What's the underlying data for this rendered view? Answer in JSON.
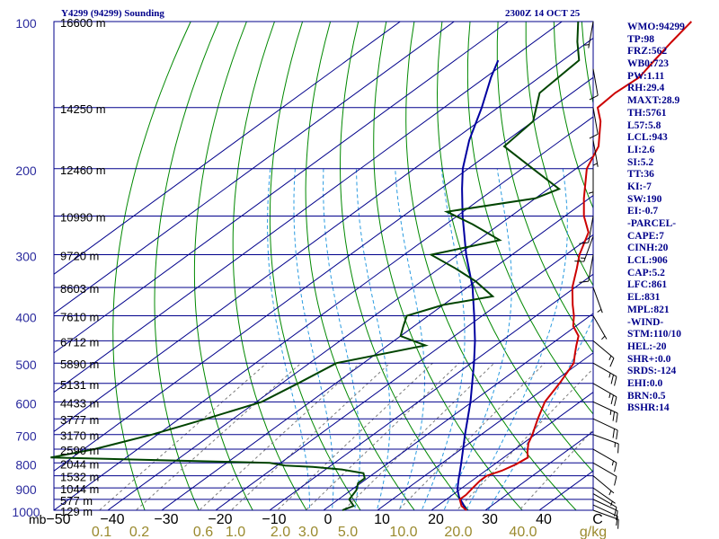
{
  "header": {
    "station": "Y4299 (94299) Sounding",
    "time": "2300Z 14 OCT 25"
  },
  "colors": {
    "isobar": "#00008b",
    "isotherm": "#00008b",
    "dry_adiabat": "#008800",
    "moist_adiabat": "#2a9be0",
    "mixing_ratio": "#7a7a7a",
    "temperature": "#cc0000",
    "dewpoint": "#004400",
    "parcel": "#0000a0",
    "wind": "#000000",
    "pressure_labels": "#2b2b9e",
    "height_labels": "#000000",
    "temp_labels": "#000000",
    "mixing_labels": "#9a8a2e"
  },
  "chart_data": {
    "type": "skew-t log-p",
    "pressure_axis": {
      "unit": "mb",
      "range": [
        1000,
        100
      ],
      "scale": "log",
      "ticks": [
        "100",
        "200",
        "300",
        "400",
        "500",
        "600",
        "700",
        "800",
        "900",
        "1000"
      ]
    },
    "temperature_axis": {
      "unit": "C",
      "range": [
        -50,
        50
      ],
      "ticks": [
        "−50",
        "−40",
        "−30",
        "−20",
        "−10",
        "0",
        "10",
        "20",
        "30",
        "40",
        "C"
      ]
    },
    "mixing_ratio_axis": {
      "unit": "g/kg",
      "ticks": [
        "0.1",
        "0.2",
        "0.6",
        "1.0",
        "2.0",
        "3.0",
        "5.0",
        "10.0",
        "20.0",
        "40.0",
        "g/kg"
      ]
    },
    "height_labels": [
      {
        "p": 100,
        "text": "16600 m"
      },
      {
        "p": 150,
        "text": "14250 m"
      },
      {
        "p": 200,
        "text": "12460 m"
      },
      {
        "p": 250,
        "text": "10990 m"
      },
      {
        "p": 300,
        "text": "9720 m"
      },
      {
        "p": 350,
        "text": "8603 m"
      },
      {
        "p": 400,
        "text": "7610 m"
      },
      {
        "p": 450,
        "text": "6712 m"
      },
      {
        "p": 500,
        "text": "5890 m"
      },
      {
        "p": 550,
        "text": "5131 m"
      },
      {
        "p": 600,
        "text": "4433 m"
      },
      {
        "p": 650,
        "text": "3777 m"
      },
      {
        "p": 700,
        "text": "3170 m"
      },
      {
        "p": 750,
        "text": "2590 m"
      },
      {
        "p": 800,
        "text": "2044 m"
      },
      {
        "p": 850,
        "text": "1532 m"
      },
      {
        "p": 900,
        "text": "1044 m"
      },
      {
        "p": 950,
        "text": "577 m"
      },
      {
        "p": 1000,
        "text": "129 m"
      }
    ],
    "temperature_profile": [
      [
        1000,
        26.5
      ],
      [
        980,
        24.5
      ],
      [
        950,
        22.5
      ],
      [
        930,
        22.5
      ],
      [
        900,
        22.0
      ],
      [
        870,
        21.5
      ],
      [
        850,
        21.5
      ],
      [
        830,
        23.0
      ],
      [
        805,
        24.0
      ],
      [
        780,
        24.5
      ],
      [
        760,
        23.0
      ],
      [
        730,
        21.0
      ],
      [
        700,
        19.5
      ],
      [
        650,
        16.5
      ],
      [
        600,
        13.5
      ],
      [
        550,
        11.5
      ],
      [
        500,
        9.0
      ],
      [
        480,
        7.0
      ],
      [
        460,
        5.0
      ],
      [
        440,
        3.0
      ],
      [
        420,
        -0.5
      ],
      [
        400,
        -3.0
      ],
      [
        380,
        -6.0
      ],
      [
        350,
        -10.5
      ],
      [
        320,
        -14.5
      ],
      [
        300,
        -17.5
      ],
      [
        270,
        -21.5
      ],
      [
        250,
        -26.5
      ],
      [
        230,
        -31.0
      ],
      [
        200,
        -38.0
      ],
      [
        180,
        -41.5
      ],
      [
        160,
        -47.5
      ],
      [
        150,
        -51.5
      ],
      [
        140,
        -52.0
      ],
      [
        130,
        -51.5
      ],
      [
        120,
        -53.0
      ],
      [
        110,
        -54.5
      ],
      [
        100,
        -56.0
      ]
    ],
    "dewpoint_profile": [
      [
        1000,
        3.5
      ],
      [
        980,
        4.5
      ],
      [
        950,
        2.0
      ],
      [
        910,
        1.0
      ],
      [
        880,
        -0.5
      ],
      [
        860,
        -0.5
      ],
      [
        840,
        -2.0
      ],
      [
        825,
        -7.0
      ],
      [
        815,
        -13.0
      ],
      [
        810,
        -18.5
      ],
      [
        800,
        -22.0
      ],
      [
        780,
        -64.0
      ],
      [
        750,
        -58.0
      ],
      [
        700,
        -51.0
      ],
      [
        650,
        -45.0
      ],
      [
        600,
        -39.0
      ],
      [
        550,
        -37.0
      ],
      [
        500,
        -35.0
      ],
      [
        460,
        -23.0
      ],
      [
        440,
        -30.0
      ],
      [
        420,
        -32.0
      ],
      [
        400,
        -34.0
      ],
      [
        380,
        -30.0
      ],
      [
        365,
        -23.0
      ],
      [
        340,
        -30.0
      ],
      [
        320,
        -37.0
      ],
      [
        300,
        -45.0
      ],
      [
        280,
        -36.0
      ],
      [
        260,
        -45.0
      ],
      [
        245,
        -53.0
      ],
      [
        230,
        -40.0
      ],
      [
        220,
        -38.0
      ],
      [
        200,
        -48.0
      ],
      [
        180,
        -59.0
      ],
      [
        160,
        -60.0
      ],
      [
        140,
        -66.0
      ],
      [
        120,
        -67.0
      ],
      [
        110,
        -72.0
      ],
      [
        100,
        -77.0
      ]
    ],
    "parcel_profile": [
      [
        1000,
        26.5
      ],
      [
        940,
        21.8
      ],
      [
        906,
        19.5
      ],
      [
        861,
        17.0
      ],
      [
        850,
        16.4
      ],
      [
        800,
        13.5
      ],
      [
        700,
        7.0
      ],
      [
        600,
        -0.3
      ],
      [
        500,
        -9.5
      ],
      [
        450,
        -15.0
      ],
      [
        400,
        -21.5
      ],
      [
        350,
        -29.0
      ],
      [
        300,
        -38.5
      ],
      [
        250,
        -49.0
      ],
      [
        220,
        -56.0
      ],
      [
        200,
        -61.0
      ],
      [
        175,
        -67.0
      ],
      [
        150,
        -73.0
      ],
      [
        130,
        -79.0
      ],
      [
        120,
        -82.0
      ]
    ],
    "wind_barbs": [
      {
        "p": 1000,
        "dir": 110,
        "spd": 10
      },
      {
        "p": 975,
        "dir": 115,
        "spd": 10
      },
      {
        "p": 950,
        "dir": 115,
        "spd": 10
      },
      {
        "p": 925,
        "dir": 120,
        "spd": 10
      },
      {
        "p": 900,
        "dir": 125,
        "spd": 5
      },
      {
        "p": 850,
        "dir": 130,
        "spd": 5
      },
      {
        "p": 800,
        "dir": 120,
        "spd": 10
      },
      {
        "p": 750,
        "dir": 120,
        "spd": 15
      },
      {
        "p": 700,
        "dir": 110,
        "spd": 15
      },
      {
        "p": 650,
        "dir": 115,
        "spd": 20
      },
      {
        "p": 600,
        "dir": 115,
        "spd": 25
      },
      {
        "p": 550,
        "dir": 120,
        "spd": 25
      },
      {
        "p": 500,
        "dir": 120,
        "spd": 25
      },
      {
        "p": 450,
        "dir": 130,
        "spd": 15
      },
      {
        "p": 400,
        "dir": 150,
        "spd": 5
      },
      {
        "p": 350,
        "dir": 160,
        "spd": 5
      },
      {
        "p": 300,
        "dir": 190,
        "spd": 10
      },
      {
        "p": 275,
        "dir": 200,
        "spd": 15
      },
      {
        "p": 250,
        "dir": 190,
        "spd": 10
      },
      {
        "p": 200,
        "dir": 180,
        "spd": 5
      },
      {
        "p": 175,
        "dir": 170,
        "spd": 5
      },
      {
        "p": 150,
        "dir": 170,
        "spd": 10
      },
      {
        "p": 125,
        "dir": 170,
        "spd": 10
      },
      {
        "p": 100,
        "dir": 190,
        "spd": 5
      }
    ]
  },
  "stats": [
    "WMO:94299",
    "TP:98",
    "FRZ:562",
    "WB0:723",
    "PW:1.11",
    "RH:29.4",
    "MAXT:28.9",
    "TH:5761",
    "L57:5.8",
    "LCL:943",
    "LI:2.6",
    "SI:5.2",
    "TT:36",
    "KI:-7",
    "SW:190",
    "EI:-0.7",
    "-PARCEL-",
    "CAPE:7",
    "CINH:20",
    "LCL:906",
    "CAP:5.2",
    "LFC:861",
    "EL:831",
    "MPL:821",
    "-WIND-",
    "STM:110/10",
    "HEL:-20",
    "SHR+:0.0",
    "SRDS:-124",
    "EHI:0.0",
    "BRN:0.5",
    "BSHR:14"
  ]
}
